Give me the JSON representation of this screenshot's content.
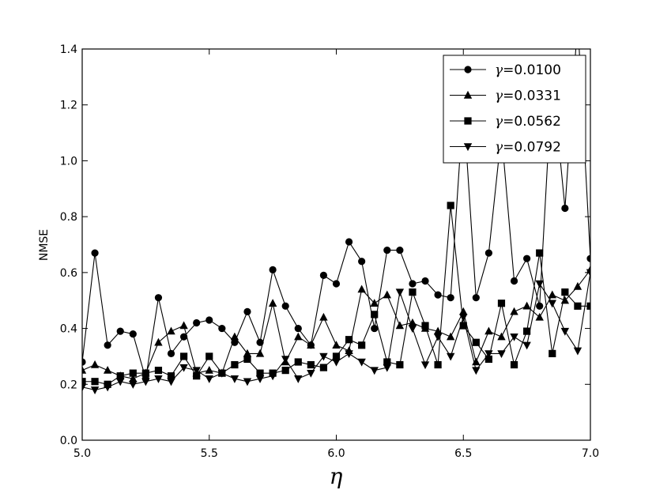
{
  "chart_data": {
    "type": "line",
    "title": "",
    "xlabel": "η",
    "ylabel": "NMSE",
    "xlim": [
      5.0,
      7.0
    ],
    "ylim": [
      0.0,
      1.4
    ],
    "xticks": [
      "5.0",
      "5.5",
      "6.0",
      "6.5",
      "7.0"
    ],
    "yticks": [
      "0.0",
      "0.2",
      "0.4",
      "0.6",
      "0.8",
      "1.0",
      "1.2",
      "1.4"
    ],
    "grid": false,
    "legend_position": "top-right",
    "x": [
      5.0,
      5.05,
      5.1,
      5.15,
      5.2,
      5.25,
      5.3,
      5.35,
      5.4,
      5.45,
      5.5,
      5.55,
      5.6,
      5.65,
      5.7,
      5.75,
      5.8,
      5.85,
      5.9,
      5.95,
      6.0,
      6.05,
      6.1,
      6.15,
      6.2,
      6.25,
      6.3,
      6.35,
      6.4,
      6.45,
      6.5,
      6.55,
      6.6,
      6.65,
      6.7,
      6.75,
      6.8,
      6.85,
      6.9,
      6.95,
      7.0
    ],
    "series": [
      {
        "name": "γ=0.0100",
        "gamma_value": "0.0100",
        "marker": "circle",
        "values": [
          0.28,
          0.67,
          0.34,
          0.39,
          0.38,
          0.22,
          0.51,
          0.31,
          0.37,
          0.42,
          0.43,
          0.4,
          0.35,
          0.46,
          0.35,
          0.61,
          0.48,
          0.4,
          0.34,
          0.59,
          0.56,
          0.71,
          0.64,
          0.4,
          0.68,
          0.68,
          0.56,
          0.57,
          0.52,
          0.51,
          1.2,
          0.51,
          0.67,
          1.1,
          0.57,
          0.65,
          0.48,
          1.3,
          0.83,
          1.5,
          0.65
        ]
      },
      {
        "name": "γ=0.0331",
        "gamma_value": "0.0331",
        "marker": "triangle-up",
        "values": [
          0.25,
          0.27,
          0.25,
          0.23,
          0.22,
          0.24,
          0.35,
          0.39,
          0.41,
          0.24,
          0.25,
          0.24,
          0.37,
          0.31,
          0.31,
          0.49,
          0.28,
          0.37,
          0.34,
          0.44,
          0.34,
          0.32,
          0.54,
          0.49,
          0.52,
          0.41,
          0.42,
          0.4,
          0.39,
          0.37,
          0.46,
          0.28,
          0.39,
          0.37,
          0.46,
          0.48,
          0.44,
          0.52,
          0.5,
          0.55,
          0.61
        ]
      },
      {
        "name": "γ=0.0562",
        "gamma_value": "0.0562",
        "marker": "square",
        "values": [
          0.21,
          0.21,
          0.2,
          0.23,
          0.24,
          0.24,
          0.25,
          0.23,
          0.3,
          0.23,
          0.3,
          0.24,
          0.27,
          0.29,
          0.24,
          0.24,
          0.25,
          0.28,
          0.27,
          0.26,
          0.3,
          0.36,
          0.34,
          0.45,
          0.28,
          0.27,
          0.53,
          0.41,
          0.27,
          0.84,
          0.41,
          0.35,
          0.29,
          0.49,
          0.27,
          0.39,
          0.67,
          0.31,
          0.53,
          0.48,
          0.48
        ]
      },
      {
        "name": "γ=0.0792",
        "gamma_value": "0.0792",
        "marker": "triangle-down",
        "values": [
          0.19,
          0.18,
          0.19,
          0.21,
          0.2,
          0.21,
          0.22,
          0.21,
          0.26,
          0.25,
          0.22,
          0.24,
          0.22,
          0.21,
          0.22,
          0.23,
          0.29,
          0.22,
          0.24,
          0.3,
          0.28,
          0.31,
          0.28,
          0.25,
          0.26,
          0.53,
          0.4,
          0.27,
          0.37,
          0.3,
          0.44,
          0.25,
          0.31,
          0.31,
          0.37,
          0.34,
          0.56,
          0.49,
          0.39,
          0.32,
          0.6
        ]
      }
    ]
  }
}
